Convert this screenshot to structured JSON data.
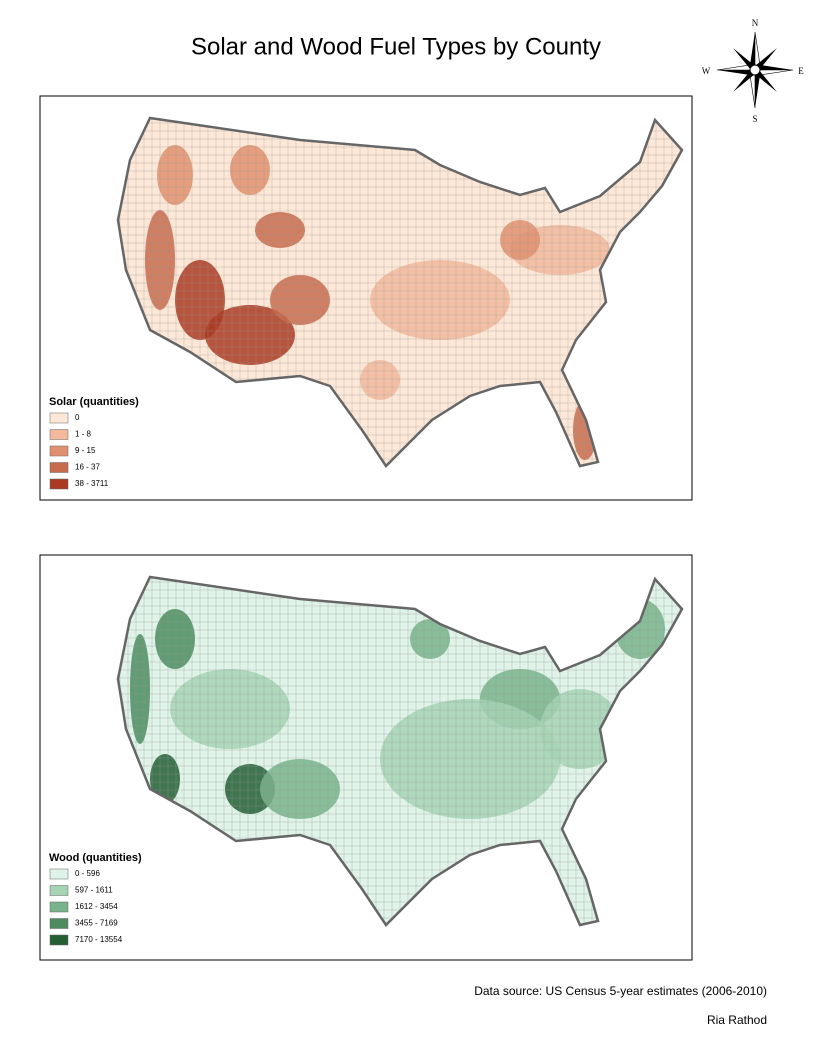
{
  "header": {
    "title": "Solar and Wood Fuel Types by County"
  },
  "compass": {
    "north": "N",
    "south": "S",
    "east": "E",
    "west": "W"
  },
  "maps": [
    {
      "legend": {
        "title": "Solar (quantities)",
        "classes": [
          {
            "label": "0",
            "color": "#fde8d8"
          },
          {
            "label": "1 - 8",
            "color": "#f2b99c"
          },
          {
            "label": "9 - 15",
            "color": "#e0906e"
          },
          {
            "label": "16 - 37",
            "color": "#c86b4d"
          },
          {
            "label": "38 - 3711",
            "color": "#aa3a22"
          }
        ]
      }
    },
    {
      "legend": {
        "title": "Wood (quantities)",
        "classes": [
          {
            "label": "0 - 596",
            "color": "#dff3e8"
          },
          {
            "label": "597 - 1611",
            "color": "#a6d3b4"
          },
          {
            "label": "1612 - 3454",
            "color": "#79b38b"
          },
          {
            "label": "3455 - 7169",
            "color": "#4c8c5f"
          },
          {
            "label": "7170 - 13554",
            "color": "#245f34"
          }
        ]
      }
    }
  ],
  "footer": {
    "source": "Data source: US Census 5-year estimates (2006-2010)",
    "author": "Ria Rathod"
  }
}
